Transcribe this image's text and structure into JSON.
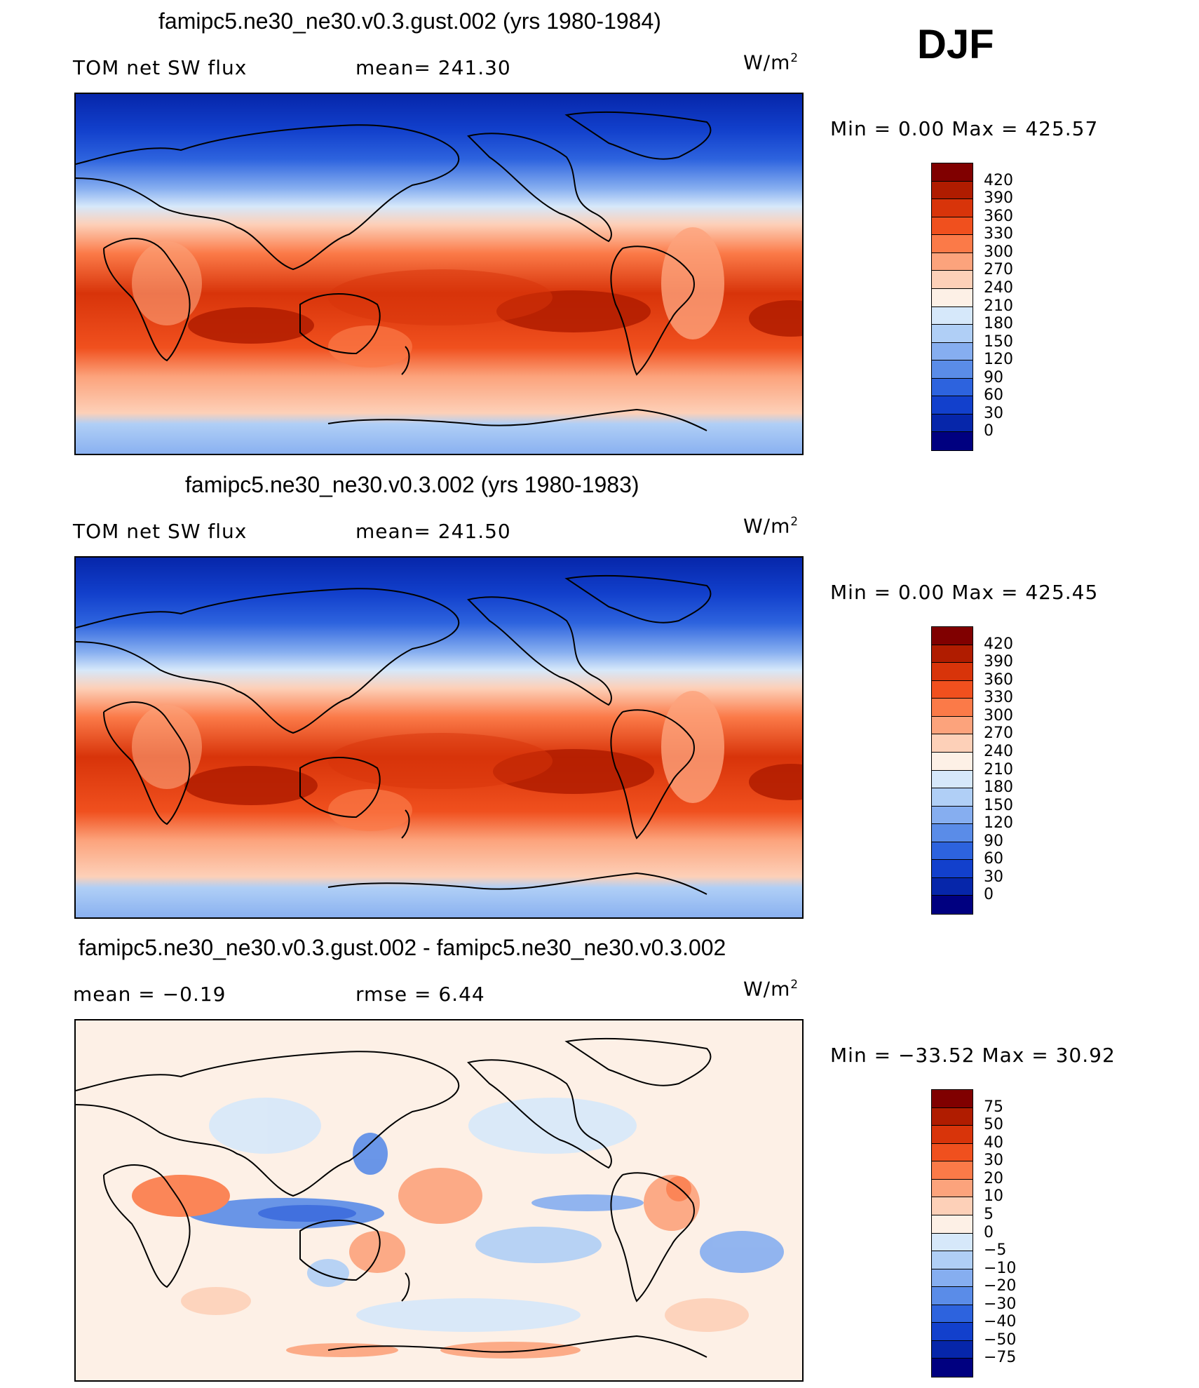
{
  "season": "DJF",
  "panels": [
    {
      "title": "famipc5.ne30_ne30.v0.3.gust.002 (yrs 1980-1984)",
      "left_label": "TOM net SW flux",
      "mid_label": "mean=  241.30",
      "units": "W/m",
      "units_exp": "2",
      "stats": "Min  =     0.00  Max  =  425.57",
      "colorbar": {
        "levels": [
          "420",
          "390",
          "360",
          "330",
          "300",
          "270",
          "240",
          "210",
          "180",
          "150",
          "120",
          "90",
          "60",
          "30",
          "0"
        ],
        "colors": [
          "#800000",
          "#b01c00",
          "#d8340a",
          "#f0501e",
          "#fb7a48",
          "#fca37c",
          "#fdd0b8",
          "#fdf0e6",
          "#d6e8fa",
          "#b0cff6",
          "#86aef0",
          "#5a8ce8",
          "#2d63de",
          "#1240cc",
          "#0626aa",
          "#000080"
        ]
      },
      "map_type": "sw"
    },
    {
      "title": "famipc5.ne30_ne30.v0.3.002 (yrs 1980-1983)",
      "left_label": "TOM net SW flux",
      "mid_label": "mean=  241.50",
      "units": "W/m",
      "units_exp": "2",
      "stats": "Min  =     0.00  Max  =  425.45",
      "colorbar": {
        "levels": [
          "420",
          "390",
          "360",
          "330",
          "300",
          "270",
          "240",
          "210",
          "180",
          "150",
          "120",
          "90",
          "60",
          "30",
          "0"
        ],
        "colors": [
          "#800000",
          "#b01c00",
          "#d8340a",
          "#f0501e",
          "#fb7a48",
          "#fca37c",
          "#fdd0b8",
          "#fdf0e6",
          "#d6e8fa",
          "#b0cff6",
          "#86aef0",
          "#5a8ce8",
          "#2d63de",
          "#1240cc",
          "#0626aa",
          "#000080"
        ]
      },
      "map_type": "sw"
    },
    {
      "title": "famipc5.ne30_ne30.v0.3.gust.002 - famipc5.ne30_ne30.v0.3.002",
      "left_label": "mean  =    −0.19",
      "mid_label": "rmse  =     6.44",
      "units": "W/m",
      "units_exp": "2",
      "stats": "Min  = −33.52  Max  =    30.92",
      "colorbar": {
        "levels": [
          "75",
          "50",
          "40",
          "30",
          "20",
          "10",
          "5",
          "0",
          "−5",
          "−10",
          "−20",
          "−30",
          "−40",
          "−50",
          "−75"
        ],
        "colors": [
          "#800000",
          "#b01c00",
          "#d8340a",
          "#f0501e",
          "#fb7a48",
          "#fca37c",
          "#fdd0b8",
          "#fdf0e6",
          "#d6e8fa",
          "#b0cff6",
          "#86aef0",
          "#5a8ce8",
          "#2d63de",
          "#1240cc",
          "#0626aa",
          "#000080"
        ]
      },
      "map_type": "diff"
    }
  ]
}
